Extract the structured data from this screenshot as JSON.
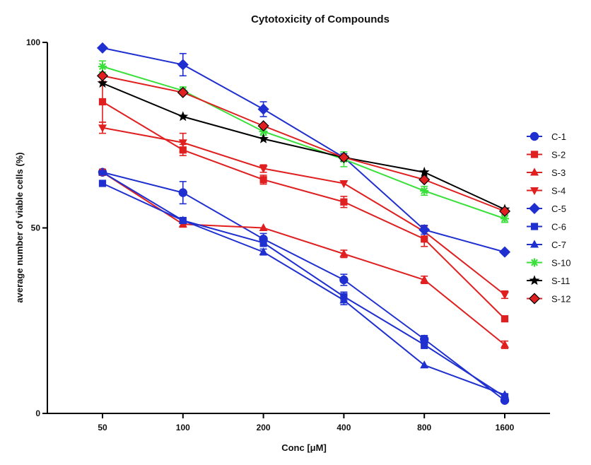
{
  "chart_data": {
    "type": "line",
    "title": "Cytotoxicity of Compounds",
    "xlabel": "Conc [μM]",
    "ylabel": "average number of viable cells (%)",
    "categories": [
      "50",
      "100",
      "200",
      "400",
      "800",
      "1600"
    ],
    "ylim": [
      0,
      100
    ],
    "yticks": [
      0,
      50,
      100
    ],
    "grid": false,
    "legend_position": "right",
    "series": [
      {
        "name": "C-1",
        "color": "#1f2fd0",
        "marker": "circle",
        "values": [
          65,
          59.5,
          47,
          36,
          20,
          3.5
        ],
        "errors": [
          0.8,
          3,
          1.5,
          1.5,
          1,
          0.5
        ]
      },
      {
        "name": "S-2",
        "color": "#e02020",
        "marker": "square",
        "values": [
          84,
          71,
          63,
          57,
          47,
          25.5
        ],
        "errors": [
          5.5,
          1.5,
          1.2,
          1.5,
          2,
          0.5
        ]
      },
      {
        "name": "S-3",
        "color": "#e02020",
        "marker": "triangle-up",
        "values": [
          65,
          51,
          50,
          43,
          36,
          18.5
        ],
        "errors": [
          0.8,
          0.8,
          0.5,
          1,
          1,
          1
        ]
      },
      {
        "name": "S-4",
        "color": "#e02020",
        "marker": "triangle-down",
        "values": [
          77,
          73,
          66,
          62,
          49,
          32
        ],
        "errors": [
          1.5,
          2.5,
          1,
          0.5,
          1.5,
          1
        ]
      },
      {
        "name": "C-5",
        "color": "#1f2fd0",
        "marker": "diamond",
        "values": [
          98.5,
          94,
          82,
          69,
          49.5,
          43.5
        ],
        "errors": [
          0.5,
          3,
          2,
          1,
          1.2,
          0.5
        ]
      },
      {
        "name": "C-6",
        "color": "#1f2fd0",
        "marker": "square",
        "values": [
          62,
          52,
          46,
          31.5,
          18.5,
          4.5
        ],
        "errors": [
          0.5,
          0.5,
          1,
          1.2,
          1,
          0.5
        ]
      },
      {
        "name": "C-7",
        "color": "#1f2fd0",
        "marker": "triangle-up",
        "values": [
          65,
          52,
          43.5,
          30.5,
          13,
          5
        ],
        "errors": [
          0.5,
          0.5,
          0.8,
          1.2,
          0.5,
          0.5
        ]
      },
      {
        "name": "S-10",
        "color": "#3ae03a",
        "marker": "asterisk",
        "values": [
          93.5,
          87,
          76,
          68.5,
          60,
          52.5
        ],
        "errors": [
          1.5,
          1,
          1,
          2,
          1.2,
          1
        ]
      },
      {
        "name": "S-11",
        "color": "#000000",
        "marker": "star",
        "values": [
          89,
          80,
          74,
          69,
          65,
          55
        ],
        "errors": [
          0.5,
          0.5,
          0.5,
          0.5,
          0.5,
          0.5
        ]
      },
      {
        "name": "S-12",
        "color": "#e02020",
        "marker": "diamond",
        "values": [
          91,
          86.5,
          77.5,
          69,
          63,
          54.5
        ],
        "errors": [
          0.5,
          0.5,
          0.5,
          0.5,
          0.5,
          0.5
        ]
      }
    ]
  }
}
